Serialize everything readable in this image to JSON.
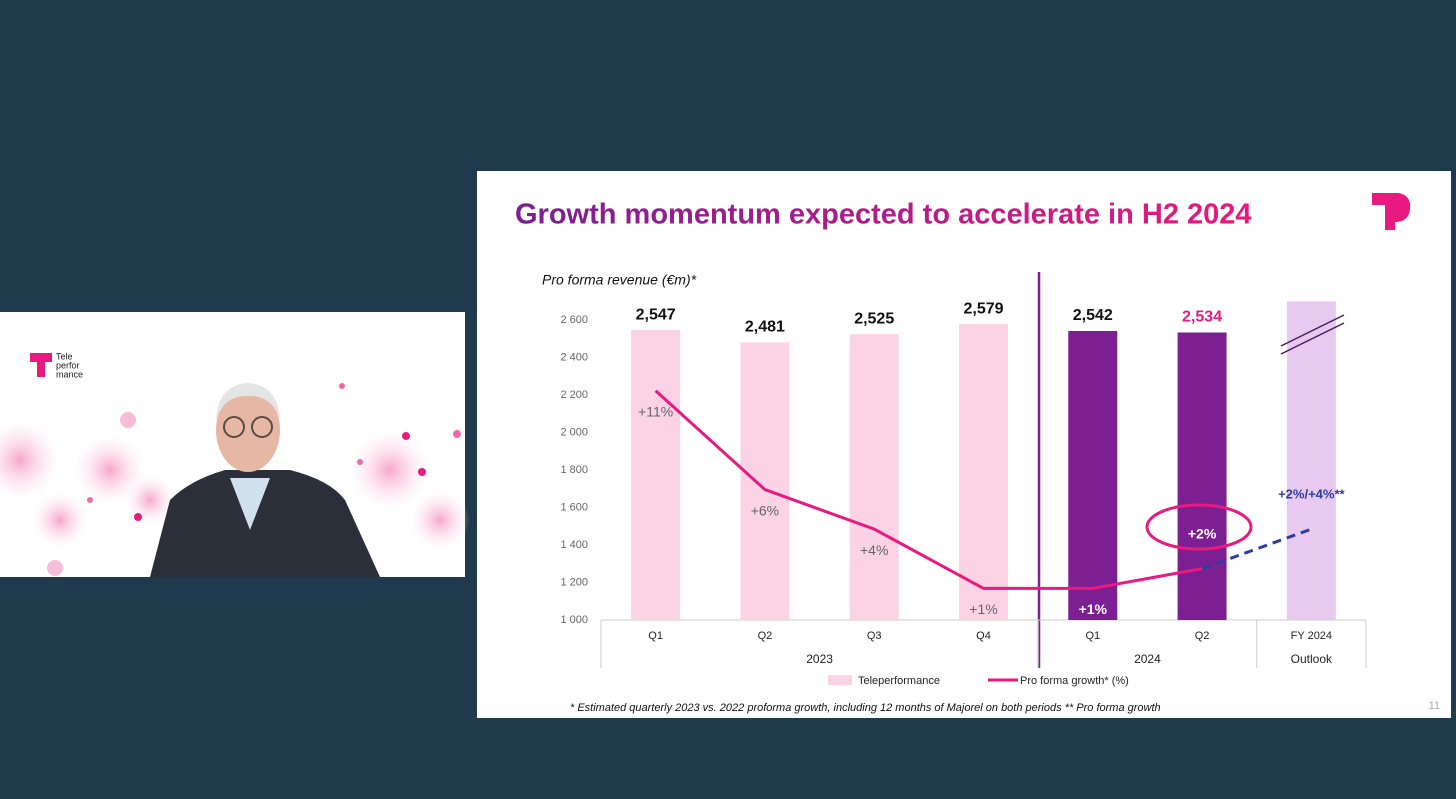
{
  "chart_data": {
    "type": "bar",
    "title": "Growth momentum expected to accelerate in H2 2024",
    "y_label": "Pro forma revenue (€m)*",
    "categories": [
      "Q1",
      "Q2",
      "Q3",
      "Q4",
      "Q1",
      "Q2",
      "FY 2024"
    ],
    "groups": [
      {
        "label": "2023",
        "count": 4
      },
      {
        "label": "2024",
        "count": 2
      },
      {
        "label": "Outlook",
        "count": 1
      }
    ],
    "series": [
      {
        "name": "Teleperformance",
        "color": "#fbd3e4",
        "colors": [
          "#fbd3e4",
          "#fbd3e4",
          "#fbd3e4",
          "#fbd3e4",
          "#7b1f93",
          "#7b1f93",
          "#e8c9f0"
        ],
        "values": [
          2547,
          2481,
          2525,
          2579,
          2542,
          2534,
          2700
        ],
        "value_labels": [
          "2,547",
          "2,481",
          "2,525",
          "2,579",
          "2,542",
          "2,534",
          null
        ],
        "label_colors": [
          "#111111",
          "#111111",
          "#111111",
          "#111111",
          "#111111",
          "#e8197f",
          null
        ]
      },
      {
        "name": "Pro forma growth* (%)",
        "type": "line",
        "axis": "y2",
        "color": "#e8197f",
        "values": [
          11,
          6,
          4,
          1,
          1,
          2,
          null
        ],
        "value_labels": [
          "+11%",
          "+6%",
          "+4%",
          "+1%",
          "+1%",
          "+2%",
          null
        ]
      },
      {
        "type": "line",
        "axis": "y2",
        "color": "#2e3d9c",
        "dashed": true,
        "values": [
          null,
          null,
          null,
          null,
          null,
          2,
          4
        ],
        "value_labels": [
          null,
          null,
          null,
          null,
          null,
          null,
          "+2%/+4%**"
        ]
      }
    ],
    "ylim": [
      1000,
      2750
    ],
    "yticks": [
      {
        "value": 1000,
        "label": "1 000"
      },
      {
        "value": 1200,
        "label": "1 200"
      },
      {
        "value": 1400,
        "label": "1 400"
      },
      {
        "value": 1600,
        "label": "1 600"
      },
      {
        "value": 1800,
        "label": "1 800"
      },
      {
        "value": 2000,
        "label": "2 000"
      },
      {
        "value": 2200,
        "label": "2 200"
      },
      {
        "value": 2400,
        "label": "2 400"
      },
      {
        "value": 2600,
        "label": "2 600"
      }
    ],
    "y2lim": [
      -0.6,
      16
    ],
    "legend": "bottom",
    "footnote": "* Estimated quarterly 2023 vs. 2022 proforma growth, including 12 months of Majorel  on both periods ** Pro forma growth",
    "page_number": "11"
  },
  "video": {
    "logo": [
      "Tele",
      "perfor",
      "mance"
    ]
  }
}
